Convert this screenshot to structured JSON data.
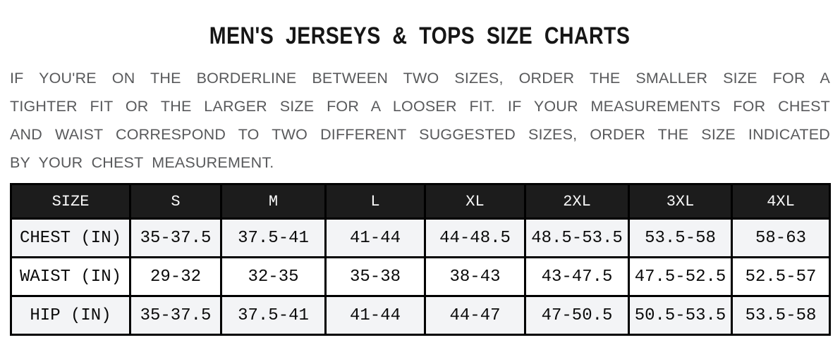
{
  "page": {
    "title": "MEN'S JERSEYS & TOPS SIZE CHARTS"
  },
  "intro": {
    "lines": [
      "IF YOU'RE ON THE BORDERLINE BETWEEN TWO SIZES, ORDER THE SMALLER SIZE FOR A",
      "TIGHTER FIT OR THE LARGER SIZE FOR A LOOSER FIT. IF YOUR MEASUREMENTS FOR CHEST",
      "AND WAIST CORRESPOND TO TWO DIFFERENT SUGGESTED SIZES, ORDER THE SIZE INDICATED",
      "BY YOUR CHEST MEASUREMENT."
    ],
    "full_text": "IF YOU'RE ON THE BORDERLINE BETWEEN TWO SIZES, ORDER THE SMALLER SIZE FOR A TIGHTER FIT OR THE LARGER SIZE FOR A LOOSER FIT. IF YOUR MEASUREMENTS FOR CHEST AND WAIST CORRESPOND TO TWO DIFFERENT SUGGESTED SIZES, ORDER THE SIZE INDICATED BY YOUR CHEST MEASUREMENT."
  },
  "size_table": {
    "columns": [
      "SIZE",
      "S",
      "M",
      "L",
      "XL",
      "2XL",
      "3XL",
      "4XL"
    ],
    "rows": [
      {
        "label": "CHEST (IN)",
        "values": [
          "35-37.5",
          "37.5-41",
          "41-44",
          "44-48.5",
          "48.5-53.5",
          "53.5-58",
          "58-63"
        ]
      },
      {
        "label": "WAIST (IN)",
        "values": [
          "29-32",
          "32-35",
          "35-38",
          "38-43",
          "43-47.5",
          "47.5-52.5",
          "52.5-57"
        ]
      },
      {
        "label": "HIP (IN)",
        "values": [
          "35-37.5",
          "37.5-41",
          "41-44",
          "44-47",
          "47-50.5",
          "50.5-53.5",
          "53.5-58"
        ]
      }
    ]
  },
  "chart_data": {
    "type": "table",
    "title": "MEN'S JERSEYS & TOPS SIZE CHARTS",
    "columns": [
      "SIZE",
      "S",
      "M",
      "L",
      "XL",
      "2XL",
      "3XL",
      "4XL"
    ],
    "rows": [
      [
        "CHEST (IN)",
        "35-37.5",
        "37.5-41",
        "41-44",
        "44-48.5",
        "48.5-53.5",
        "53.5-58",
        "58-63"
      ],
      [
        "WAIST (IN)",
        "29-32",
        "32-35",
        "35-38",
        "38-43",
        "43-47.5",
        "47.5-52.5",
        "52.5-57"
      ],
      [
        "HIP (IN)",
        "35-37.5",
        "37.5-41",
        "41-44",
        "44-47",
        "47-50.5",
        "50.5-53.5",
        "53.5-58"
      ]
    ]
  },
  "colors": {
    "header_bg": "#1c1c1c",
    "header_text": "#fafafa",
    "row_shaded_bg": "#f3f4f6",
    "row_plain_bg": "#ffffff",
    "table_border": "#000000",
    "title_text": "#161616",
    "intro_text": "#58595b"
  }
}
